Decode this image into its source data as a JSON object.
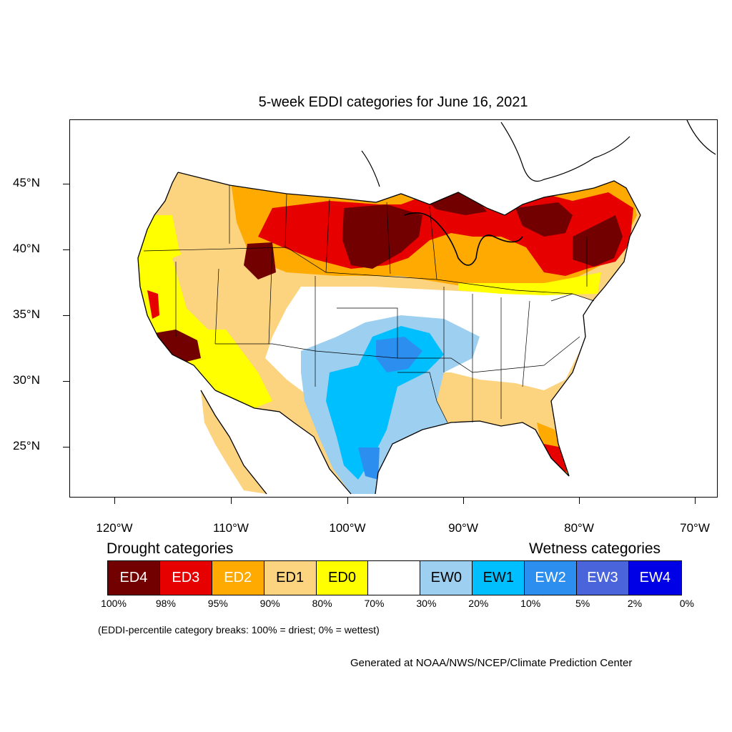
{
  "title": "5-week EDDI categories for June 16, 2021",
  "lat_labels": [
    "45°N",
    "40°N",
    "35°N",
    "30°N",
    "25°N"
  ],
  "lon_labels": [
    "120°W",
    "110°W",
    "100°W",
    "90°W",
    "80°W",
    "70°W"
  ],
  "legend": {
    "drought_title": "Drought categories",
    "wetness_title": "Wetness categories",
    "categories": [
      {
        "label": "ED4",
        "color": "#730000",
        "text_color": "#ffffff"
      },
      {
        "label": "ED3",
        "color": "#e60000",
        "text_color": "#ffffff"
      },
      {
        "label": "ED2",
        "color": "#ffaa00",
        "text_color": "#ffffff"
      },
      {
        "label": "ED1",
        "color": "#fcd37f",
        "text_color": "#000000"
      },
      {
        "label": "ED0",
        "color": "#ffff00",
        "text_color": "#000000"
      },
      {
        "label": "",
        "color": "#ffffff",
        "text_color": "#000000"
      },
      {
        "label": "EW0",
        "color": "#9dcff0",
        "text_color": "#000000"
      },
      {
        "label": "EW1",
        "color": "#00bfff",
        "text_color": "#000000"
      },
      {
        "label": "EW2",
        "color": "#2c8ff0",
        "text_color": "#ffffff"
      },
      {
        "label": "EW3",
        "color": "#4a64dc",
        "text_color": "#ffffff"
      },
      {
        "label": "EW4",
        "color": "#0000e6",
        "text_color": "#ffffff"
      }
    ],
    "breaks": [
      "100%",
      "98%",
      "95%",
      "90%",
      "80%",
      "70%",
      "30%",
      "20%",
      "10%",
      "5%",
      "2%",
      "0%"
    ]
  },
  "note": "(EDDI-percentile category breaks: 100% = driest; 0% = wettest)",
  "credit": "Generated at NOAA/NWS/NCEP/Climate Prediction Center"
}
